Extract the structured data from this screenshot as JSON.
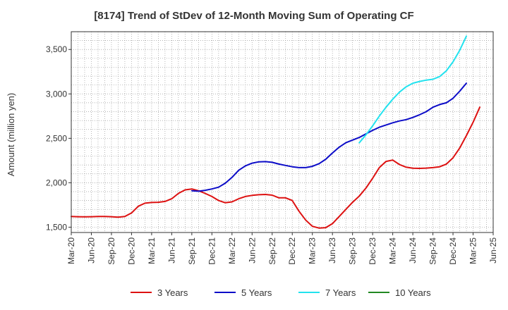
{
  "chart_data": {
    "type": "line",
    "title": "[8174]  Trend of StDev of 12-Month Moving Sum of Operating CF",
    "xlabel": "",
    "ylabel": "Amount (million yen)",
    "x_tick_labels": [
      "Mar-20",
      "Jun-20",
      "Sep-20",
      "Dec-20",
      "Mar-21",
      "Jun-21",
      "Sep-21",
      "Dec-21",
      "Mar-22",
      "Jun-22",
      "Sep-22",
      "Dec-22",
      "Mar-23",
      "Jun-23",
      "Sep-23",
      "Dec-23",
      "Mar-24",
      "Jun-24",
      "Sep-24",
      "Dec-24",
      "Mar-25",
      "Jun-25"
    ],
    "y_ticks": [
      1500,
      2000,
      2500,
      3000,
      3500
    ],
    "y_tick_labels": [
      "1,500",
      "2,000",
      "2,500",
      "3,000",
      "3,500"
    ],
    "ylim": [
      1440,
      3700
    ],
    "x_range_months": [
      0,
      63
    ],
    "grid": true,
    "legend_position": "bottom",
    "series": [
      {
        "name": "3 Years",
        "color": "#dd1111",
        "start_month": 0,
        "values": [
          1620,
          1618,
          1617,
          1618,
          1620,
          1620,
          1618,
          1612,
          1620,
          1660,
          1735,
          1770,
          1778,
          1780,
          1790,
          1820,
          1880,
          1920,
          1930,
          1910,
          1880,
          1845,
          1800,
          1775,
          1785,
          1820,
          1845,
          1858,
          1865,
          1868,
          1860,
          1830,
          1830,
          1800,
          1680,
          1580,
          1510,
          1490,
          1495,
          1540,
          1620,
          1700,
          1780,
          1850,
          1940,
          2050,
          2170,
          2240,
          2255,
          2205,
          2175,
          2163,
          2162,
          2165,
          2170,
          2180,
          2210,
          2280,
          2390,
          2530,
          2680,
          2850
        ]
      },
      {
        "name": "5 Years",
        "color": "#0c0cc8",
        "start_month": 18,
        "values": [
          1910,
          1905,
          1915,
          1930,
          1950,
          1995,
          2060,
          2140,
          2190,
          2220,
          2235,
          2238,
          2230,
          2210,
          2195,
          2180,
          2170,
          2170,
          2185,
          2215,
          2265,
          2335,
          2400,
          2450,
          2480,
          2510,
          2550,
          2590,
          2625,
          2650,
          2675,
          2695,
          2710,
          2735,
          2765,
          2800,
          2850,
          2880,
          2900,
          2950,
          3030,
          3120
        ]
      },
      {
        "name": "7 Years",
        "color": "#22e2ee",
        "start_month": 43,
        "values": [
          2450,
          2540,
          2640,
          2750,
          2850,
          2940,
          3020,
          3080,
          3120,
          3140,
          3155,
          3165,
          3195,
          3260,
          3360,
          3490,
          3650
        ]
      },
      {
        "name": "10 Years",
        "color": "#228822",
        "start_month": 0,
        "values": []
      }
    ]
  }
}
